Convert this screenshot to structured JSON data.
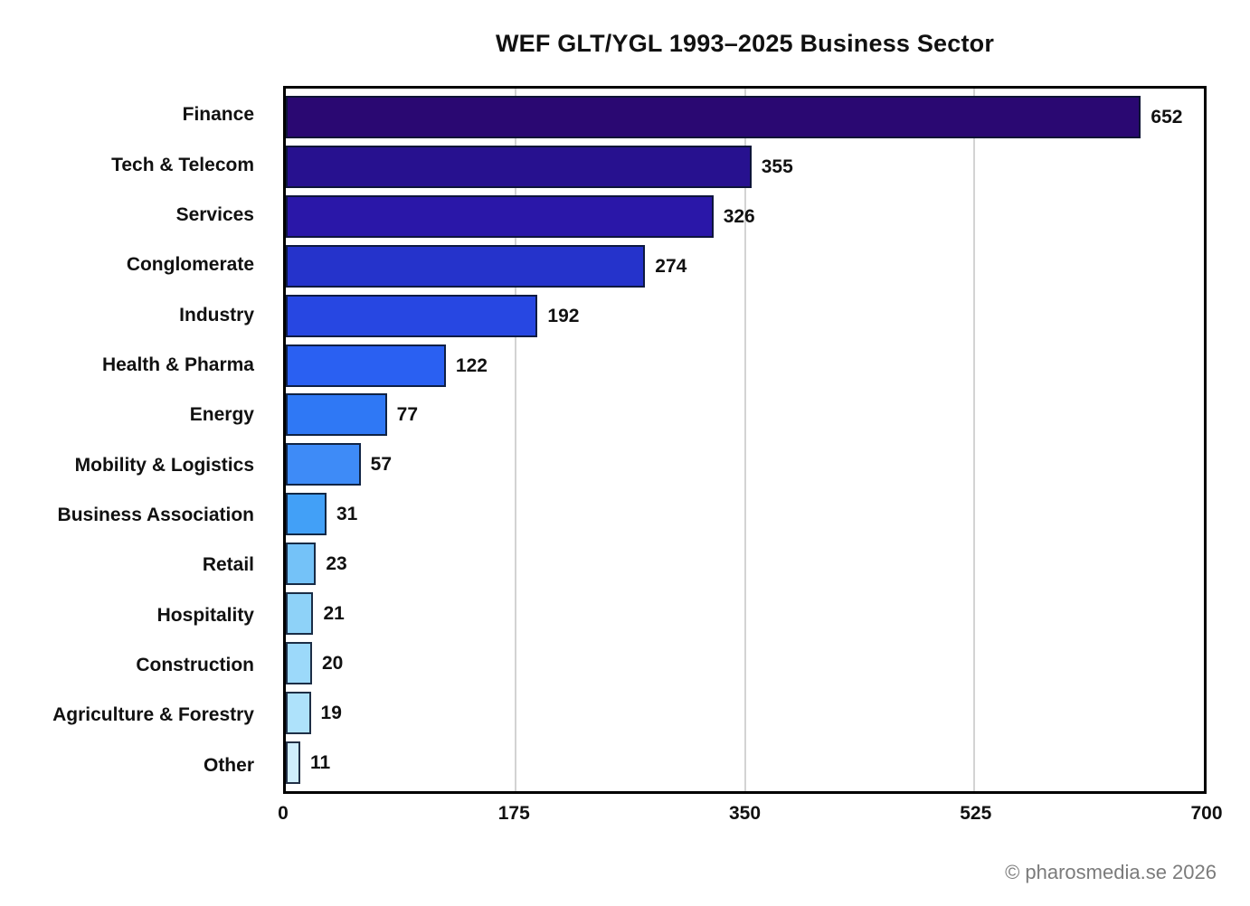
{
  "chart_data": {
    "type": "bar",
    "orientation": "horizontal",
    "title": "WEF GLT/YGL 1993–2025 Business Sector",
    "categories": [
      "Finance",
      "Tech & Telecom",
      "Services",
      "Conglomerate",
      "Industry",
      "Health & Pharma",
      "Energy",
      "Mobility & Logistics",
      "Business Association",
      "Retail",
      "Hospitality",
      "Construction",
      "Agriculture & Forestry",
      "Other"
    ],
    "values": [
      652,
      355,
      326,
      274,
      192,
      122,
      77,
      57,
      31,
      23,
      21,
      20,
      19,
      11
    ],
    "bar_colors": [
      "#2a0872",
      "#27118f",
      "#2a17a8",
      "#2533cb",
      "#2747e2",
      "#2a60f2",
      "#2f78f5",
      "#3e8bf7",
      "#42a0f7",
      "#74c2f8",
      "#8ed2f8",
      "#9cd9fa",
      "#aee2fb",
      "#cfeefd"
    ],
    "xlim": [
      0,
      700
    ],
    "x_ticks": [
      0,
      175,
      350,
      525,
      700
    ],
    "gridlines_at": [
      175,
      350,
      525
    ],
    "grid_color": "#d3d3d3",
    "value_labels_shown": true,
    "legend": "none",
    "xlabel": "",
    "ylabel": ""
  },
  "footer": {
    "credit": "© pharosmedia.se 2026"
  }
}
